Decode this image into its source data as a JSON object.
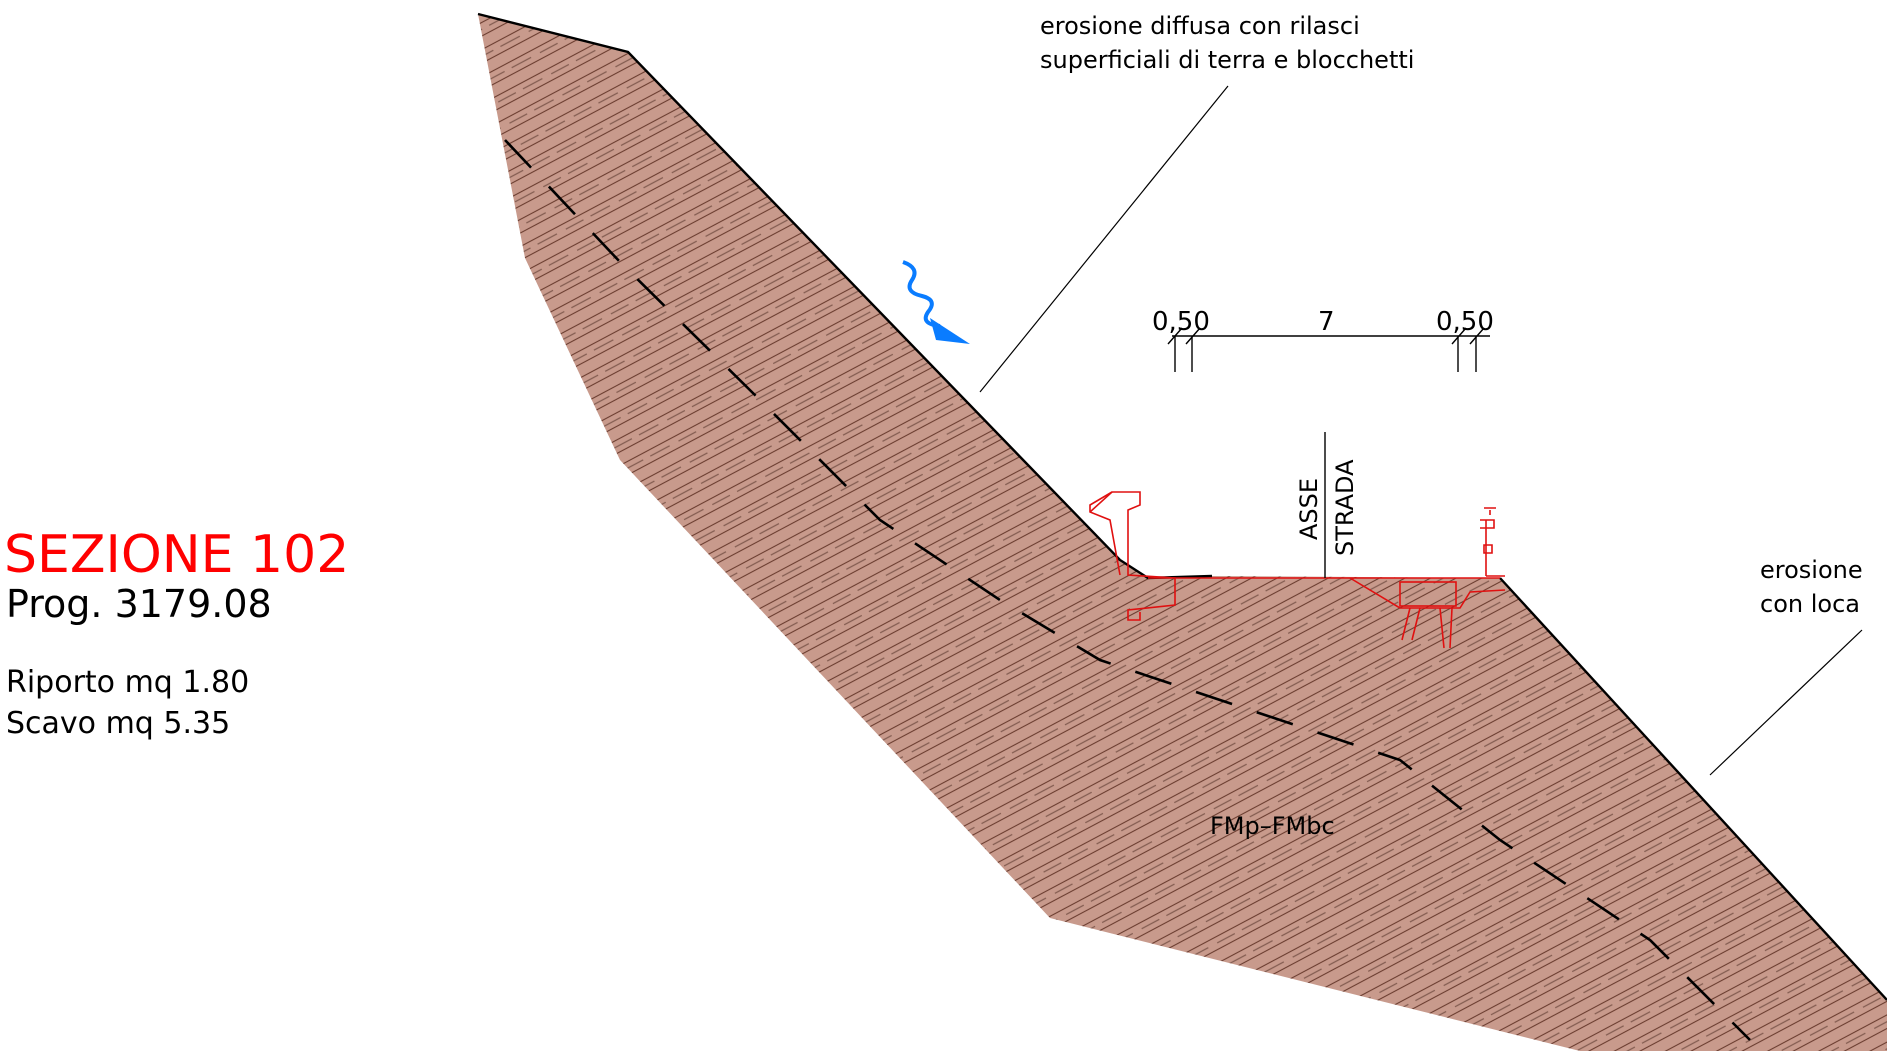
{
  "section": {
    "title": "SEZIONE 102",
    "progressive": "Prog. 3179.08",
    "fill": "Riporto mq 1.80",
    "cut": "Scavo mq 5.35"
  },
  "annotations": {
    "erosion_top_line1": "erosione diffusa con rilasci",
    "erosion_top_line2": "superficiali di terra e blocchetti",
    "erosion_right_line1": "erosione",
    "erosion_right_line2": "con loca",
    "formation": "FMp–FMbc",
    "axis_line1": "ASSE",
    "axis_line2": "STRADA"
  },
  "dimensions": {
    "left_shoulder": "0,50",
    "carriageway": "7",
    "right_shoulder": "0,50"
  },
  "colors": {
    "title_red": "#ff0000",
    "terrain_fill": "#c89a8c",
    "hatch": "#7a4a3c",
    "road_red": "#e01010",
    "flow_arrow": "#0a7cff",
    "ink": "#000000"
  },
  "icons": {
    "flow_arrow": "wavy-water-arrow-icon",
    "guardrail": "guardrail-icon",
    "retaining_wall": "retaining-wall-icon"
  }
}
